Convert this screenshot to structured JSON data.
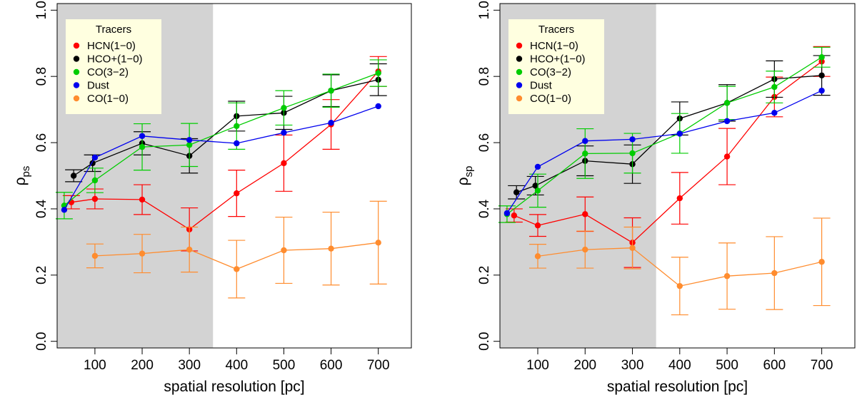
{
  "chart_data": [
    {
      "type": "line",
      "panel": "left",
      "ylabel_main": "ρ",
      "ylabel_sub": "ps",
      "xlabel": "spatial resolution [pc]",
      "xlim": [
        20,
        770
      ],
      "ylim": [
        -0.02,
        1.02
      ],
      "xticks": [
        "100",
        "200",
        "300",
        "400",
        "500",
        "600",
        "700"
      ],
      "yticks": [
        "0.0",
        "0.2",
        "0.4",
        "0.6",
        "0.8",
        "1.0"
      ],
      "shaded_region": [
        20,
        350
      ],
      "legend_title": "Tracers",
      "legend_position": "top-left",
      "series": [
        {
          "name": "HCN(1−0)",
          "color": "#ff0000",
          "x": [
            50,
            100,
            200,
            300,
            400,
            500,
            600,
            700
          ],
          "values": [
            0.42,
            0.43,
            0.428,
            0.338,
            0.447,
            0.538,
            0.655,
            0.815
          ],
          "err": [
            0.02,
            0.03,
            0.045,
            0.065,
            0.07,
            0.085,
            0.075,
            0.045
          ]
        },
        {
          "name": "HCO+(1−0)",
          "color": "#000000",
          "x": [
            55,
            95,
            200,
            300,
            400,
            500,
            600,
            700
          ],
          "values": [
            0.5,
            0.538,
            0.598,
            0.56,
            0.68,
            0.69,
            0.757,
            0.79
          ],
          "err": [
            0.018,
            0.025,
            0.035,
            0.052,
            0.045,
            0.05,
            0.048,
            0.048
          ]
        },
        {
          "name": "CO(3−2)",
          "color": "#00cc00",
          "x": [
            35,
            100,
            200,
            300,
            400,
            500,
            600,
            700
          ],
          "values": [
            0.41,
            0.486,
            0.587,
            0.593,
            0.65,
            0.705,
            0.757,
            0.81
          ],
          "err": [
            0.04,
            0.037,
            0.07,
            0.065,
            0.07,
            0.052,
            0.05,
            0.04
          ]
        },
        {
          "name": "Dust",
          "color": "#0000ee",
          "x": [
            35,
            100,
            200,
            300,
            400,
            500,
            600,
            700
          ],
          "values": [
            0.397,
            0.555,
            0.62,
            0.608,
            0.598,
            0.63,
            0.66,
            0.71
          ],
          "err": [
            0,
            0,
            0,
            0,
            0,
            0,
            0,
            0
          ]
        },
        {
          "name": "CO(1−0)",
          "color": "#ff8c2e",
          "x": [
            100,
            200,
            300,
            400,
            500,
            600,
            700
          ],
          "values": [
            0.258,
            0.265,
            0.277,
            0.218,
            0.275,
            0.28,
            0.298
          ],
          "err": [
            0.036,
            0.058,
            0.068,
            0.087,
            0.1,
            0.11,
            0.125
          ]
        }
      ]
    },
    {
      "type": "line",
      "panel": "right",
      "ylabel_main": "ρ",
      "ylabel_sub": "sp",
      "xlabel": "spatial resolution [pc]",
      "xlim": [
        20,
        770
      ],
      "ylim": [
        -0.02,
        1.02
      ],
      "xticks": [
        "100",
        "200",
        "300",
        "400",
        "500",
        "600",
        "700"
      ],
      "yticks": [
        "0.0",
        "0.2",
        "0.4",
        "0.6",
        "0.8",
        "1.0"
      ],
      "shaded_region": [
        20,
        350
      ],
      "legend_title": "Tracers",
      "legend_position": "top-left",
      "series": [
        {
          "name": "HCN(1−0)",
          "color": "#ff0000",
          "x": [
            50,
            100,
            200,
            300,
            400,
            500,
            600,
            700
          ],
          "values": [
            0.38,
            0.35,
            0.384,
            0.298,
            0.432,
            0.558,
            0.738,
            0.845
          ],
          "err": [
            0.02,
            0.033,
            0.052,
            0.075,
            0.078,
            0.085,
            0.06,
            0.045
          ]
        },
        {
          "name": "HCO+(1−0)",
          "color": "#000000",
          "x": [
            55,
            95,
            200,
            300,
            400,
            500,
            600,
            700
          ],
          "values": [
            0.45,
            0.47,
            0.545,
            0.535,
            0.673,
            0.72,
            0.792,
            0.803
          ],
          "err": [
            0.02,
            0.028,
            0.045,
            0.058,
            0.05,
            0.055,
            0.055,
            0.06
          ]
        },
        {
          "name": "CO(3−2)",
          "color": "#00cc00",
          "x": [
            35,
            100,
            200,
            300,
            400,
            500,
            600,
            700
          ],
          "values": [
            0.384,
            0.455,
            0.567,
            0.568,
            0.628,
            0.72,
            0.768,
            0.858
          ],
          "err": [
            0.025,
            0.05,
            0.075,
            0.06,
            0.06,
            0.05,
            0.048,
            0.03
          ]
        },
        {
          "name": "Dust",
          "color": "#0000ee",
          "x": [
            35,
            100,
            200,
            300,
            400,
            500,
            600,
            700
          ],
          "values": [
            0.387,
            0.527,
            0.605,
            0.61,
            0.627,
            0.665,
            0.69,
            0.757
          ],
          "err": [
            0,
            0,
            0,
            0,
            0,
            0,
            0,
            0
          ]
        },
        {
          "name": "CO(1−0)",
          "color": "#ff8c2e",
          "x": [
            100,
            200,
            300,
            400,
            500,
            600,
            700
          ],
          "values": [
            0.257,
            0.277,
            0.282,
            0.167,
            0.197,
            0.206,
            0.24
          ],
          "err": [
            0.036,
            0.056,
            0.063,
            0.087,
            0.1,
            0.11,
            0.132
          ]
        }
      ]
    }
  ]
}
